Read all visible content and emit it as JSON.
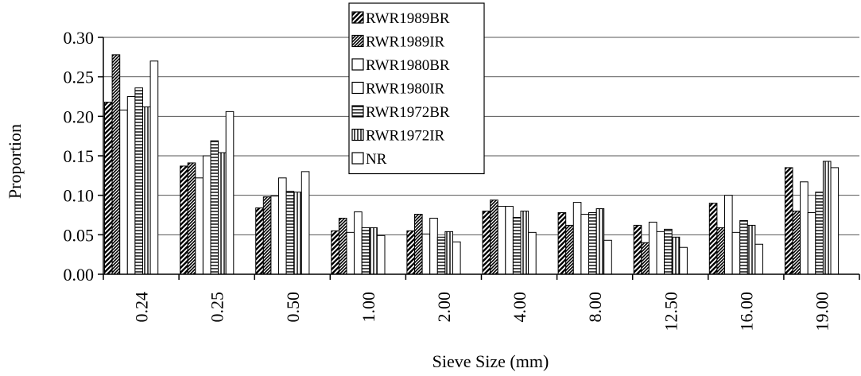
{
  "chart_data": {
    "type": "bar",
    "title": "",
    "xlabel": "Sieve Size (mm)",
    "ylabel": "Proportion",
    "ylim": [
      0,
      0.3
    ],
    "yticks": [
      "0.00",
      "0.05",
      "0.10",
      "0.15",
      "0.20",
      "0.25",
      "0.30"
    ],
    "grid": true,
    "legend_position": "top-center",
    "categories": [
      "0.24",
      "0.25",
      "0.50",
      "1.00",
      "2.00",
      "4.00",
      "8.00",
      "12.50",
      "16.00",
      "19.00"
    ],
    "series": [
      {
        "name": "RWR1989BR",
        "values": [
          0.218,
          0.137,
          0.084,
          0.055,
          0.055,
          0.08,
          0.078,
          0.062,
          0.09,
          0.135
        ]
      },
      {
        "name": "RWR1989IR",
        "values": [
          0.278,
          0.141,
          0.098,
          0.071,
          0.076,
          0.094,
          0.062,
          0.04,
          0.059,
          0.08
        ]
      },
      {
        "name": "RWR1980BR",
        "values": [
          0.208,
          0.122,
          0.099,
          0.053,
          0.051,
          0.086,
          0.091,
          0.066,
          0.1,
          0.117
        ]
      },
      {
        "name": "RWR1980IR",
        "values": [
          0.225,
          0.15,
          0.122,
          0.079,
          0.071,
          0.086,
          0.076,
          0.054,
          0.053,
          0.078
        ]
      },
      {
        "name": "RWR1972BR",
        "values": [
          0.236,
          0.169,
          0.105,
          0.059,
          0.047,
          0.072,
          0.078,
          0.057,
          0.068,
          0.104
        ]
      },
      {
        "name": "RWR1972IR",
        "values": [
          0.212,
          0.154,
          0.104,
          0.059,
          0.054,
          0.08,
          0.083,
          0.047,
          0.062,
          0.143
        ]
      },
      {
        "name": "NR",
        "values": [
          0.27,
          0.206,
          0.13,
          0.049,
          0.041,
          0.053,
          0.043,
          0.034,
          0.038,
          0.135
        ]
      }
    ]
  }
}
